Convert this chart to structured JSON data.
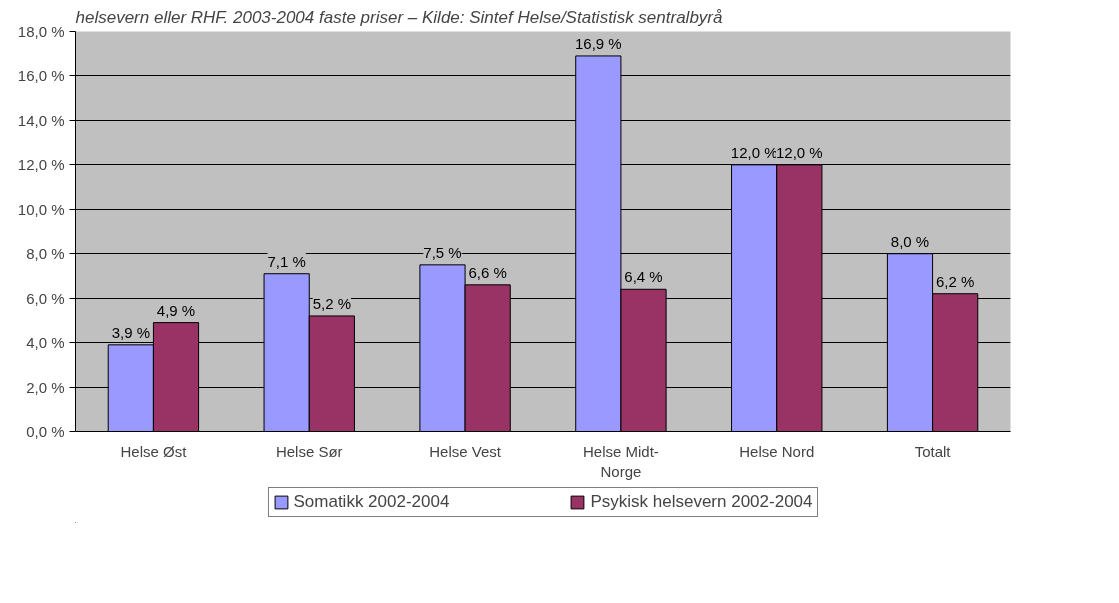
{
  "chart_data": {
    "type": "bar",
    "title": "helsevern eller RHF. 2003-2004 faste priser – Kilde: Sintef Helse/Statistisk sentralbyrå",
    "categories": [
      "Helse Øst",
      "Helse Sør",
      "Helse Vest",
      "Helse Midt-\nNorge",
      "Helse Nord",
      "Totalt"
    ],
    "series": [
      {
        "name": "Somatikk 2002-2004",
        "color": "#9999ff",
        "values": [
          3.9,
          7.1,
          7.5,
          16.9,
          12.0,
          8.0
        ],
        "value_labels": [
          "3,9 %",
          "7,1 %",
          "7,5 %",
          "16,9 %",
          "12,0 %",
          "8,0 %"
        ]
      },
      {
        "name": "Psykisk helsevern 2002-2004",
        "color": "#993366",
        "values": [
          4.9,
          5.2,
          6.6,
          6.4,
          12.0,
          6.2
        ],
        "value_labels": [
          "4,9 %",
          "5,2 %",
          "6,6 %",
          "6,4 %",
          "12,0 %",
          "6,2 %"
        ]
      }
    ],
    "ylim": [
      0,
      18
    ],
    "yticks": [
      {
        "value": 0,
        "label": "0,0 %"
      },
      {
        "value": 2,
        "label": "2,0 %"
      },
      {
        "value": 4,
        "label": "4,0 %"
      },
      {
        "value": 6,
        "label": "6,0 %"
      },
      {
        "value": 8,
        "label": "8,0 %"
      },
      {
        "value": 10,
        "label": "10,0 %"
      },
      {
        "value": 12,
        "label": "12,0 %"
      },
      {
        "value": 14,
        "label": "14,0 %"
      },
      {
        "value": 16,
        "label": "16,0 %"
      },
      {
        "value": 18,
        "label": "18,0 %"
      }
    ],
    "grid": "y",
    "legend": "bottom"
  }
}
